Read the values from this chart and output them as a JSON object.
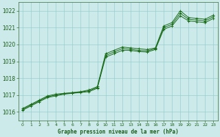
{
  "title": "Graphe pression niveau de la mer (hPa)",
  "bg_color": "#cceaea",
  "grid_color": "#99cccc",
  "line_color1": "#1a6b1a",
  "line_color2": "#1a6b1a",
  "line_color3": "#1a6b1a",
  "xlim": [
    -0.5,
    23.5
  ],
  "ylim": [
    1015.5,
    1022.5
  ],
  "yticks": [
    1016,
    1017,
    1018,
    1019,
    1020,
    1021,
    1022
  ],
  "xticks": [
    0,
    1,
    2,
    3,
    4,
    5,
    6,
    7,
    8,
    9,
    10,
    11,
    12,
    13,
    14,
    15,
    16,
    17,
    18,
    19,
    20,
    21,
    22,
    23
  ],
  "series1_x": [
    0,
    1,
    2,
    3,
    4,
    5,
    6,
    7,
    8,
    9,
    10,
    11,
    12,
    13,
    14,
    15,
    16,
    17,
    18,
    19,
    20,
    21,
    22,
    23
  ],
  "series1_y": [
    1016.2,
    1016.45,
    1016.7,
    1016.95,
    1017.05,
    1017.1,
    1017.15,
    1017.2,
    1017.3,
    1017.5,
    1019.45,
    1019.65,
    1019.85,
    1019.8,
    1019.75,
    1019.7,
    1019.8,
    1021.1,
    1021.3,
    1022.0,
    1021.6,
    1021.55,
    1021.5,
    1021.75
  ],
  "series2_x": [
    0,
    1,
    2,
    3,
    4,
    5,
    6,
    7,
    8,
    9,
    10,
    11,
    12,
    13,
    14,
    15,
    16,
    17,
    18,
    19,
    20,
    21,
    22,
    23
  ],
  "series2_y": [
    1016.15,
    1016.4,
    1016.65,
    1016.9,
    1017.0,
    1017.08,
    1017.12,
    1017.18,
    1017.25,
    1017.45,
    1019.35,
    1019.55,
    1019.75,
    1019.72,
    1019.65,
    1019.62,
    1019.75,
    1021.0,
    1021.2,
    1021.85,
    1021.5,
    1021.45,
    1021.4,
    1021.65
  ],
  "series3_x": [
    0,
    1,
    2,
    3,
    4,
    5,
    6,
    7,
    8,
    9,
    10,
    11,
    12,
    13,
    14,
    15,
    16,
    17,
    18,
    19,
    20,
    21,
    22,
    23
  ],
  "series3_y": [
    1016.1,
    1016.35,
    1016.6,
    1016.85,
    1016.95,
    1017.05,
    1017.1,
    1017.15,
    1017.2,
    1017.4,
    1019.25,
    1019.45,
    1019.65,
    1019.65,
    1019.58,
    1019.55,
    1019.7,
    1020.9,
    1021.1,
    1021.7,
    1021.4,
    1021.35,
    1021.3,
    1021.55
  ]
}
